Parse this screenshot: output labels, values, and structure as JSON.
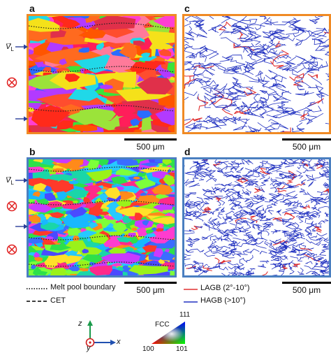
{
  "panels": {
    "a": {
      "label": "a",
      "frame_color": "#f08a24"
    },
    "b": {
      "label": "b",
      "frame_color": "#4a7fc0"
    },
    "c": {
      "label": "c",
      "frame_color": "#f08a24"
    },
    "d": {
      "label": "d",
      "frame_color": "#4a7fc0"
    }
  },
  "scalebars": {
    "a": "500 μm",
    "b": "500 μm",
    "c": "500 μm",
    "d": "500 μm"
  },
  "side_labels": {
    "top_vl": "V",
    "top_vl_sub": "L",
    "bottom_vl": "V",
    "bottom_vl_sub": "L"
  },
  "legend_left": {
    "melt_pool": "Melt pool boundary",
    "cet": "CET"
  },
  "legend_right": {
    "lagb": "LAGB (2°-10°)",
    "hagb": "HAGB (>10°)",
    "lagb_color": "#e03030",
    "hagb_color": "#2030c0"
  },
  "axes": {
    "z": "z",
    "x": "x",
    "y": "y",
    "z_color": "#1a9a4a",
    "x_color": "#2050b0",
    "y_color": "#d02020"
  },
  "fcc": {
    "title": "FCC",
    "v111": "111",
    "v100": "100",
    "v101": "101"
  },
  "colors": {
    "arrow": "#2a3e9a",
    "otimes": "#e02020"
  }
}
